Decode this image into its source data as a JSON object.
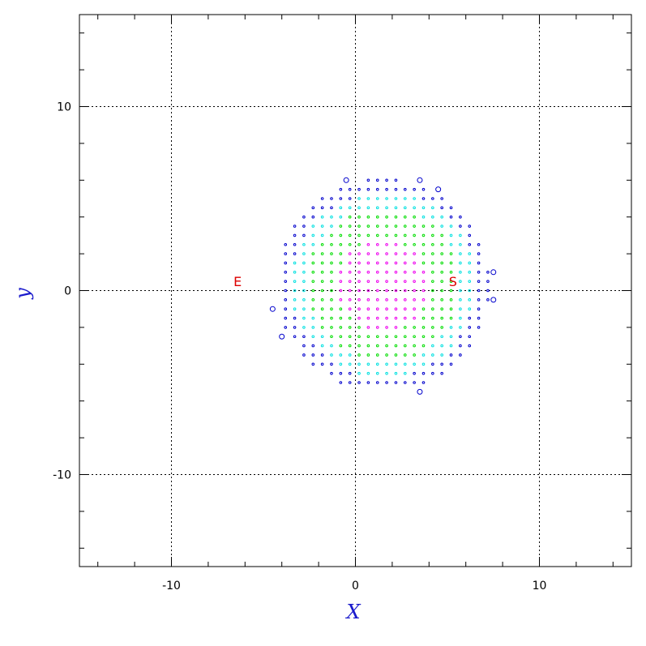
{
  "chart_data": {
    "type": "scatter",
    "title": "",
    "xlabel": "X",
    "ylabel": "y",
    "xlim": [
      -15,
      15
    ],
    "ylim": [
      -15,
      15
    ],
    "xticks": [
      -10,
      0,
      10
    ],
    "yticks": [
      -10,
      0,
      10
    ],
    "x_tick_labels": [
      "-10",
      "0",
      "10"
    ],
    "y_tick_labels": [
      "-10",
      "0",
      "10"
    ],
    "minor_tick_step": 2,
    "grid": true,
    "grid_style": "dotted",
    "disk": {
      "center_x": 1.5,
      "center_y": 0.3,
      "radius": 5.8,
      "grid_step": 0.5
    },
    "color_bands": [
      {
        "name": "magenta",
        "color": "#ee00ee",
        "max_radius": 2.5
      },
      {
        "name": "green",
        "color": "#00dd00",
        "max_radius": 4.2
      },
      {
        "name": "cyan",
        "color": "#00e0e0",
        "max_radius": 5.0
      },
      {
        "name": "blue",
        "color": "#0000cc",
        "max_radius": 6.0
      }
    ],
    "open_circles": [
      {
        "x": -0.5,
        "y": 6.0
      },
      {
        "x": 3.5,
        "y": 6.0
      },
      {
        "x": 4.5,
        "y": 5.5
      },
      {
        "x": 7.5,
        "y": 1.0
      },
      {
        "x": 7.5,
        "y": -0.5
      },
      {
        "x": -4.5,
        "y": -1.0
      },
      {
        "x": -4.0,
        "y": -2.5
      },
      {
        "x": 3.5,
        "y": -5.5
      }
    ],
    "annotations": [
      {
        "text": "E",
        "x": -6.4,
        "y": 0.5,
        "color": "#dd0000"
      },
      {
        "text": "S",
        "x": 5.3,
        "y": 0.5,
        "color": "#dd0000"
      }
    ]
  }
}
